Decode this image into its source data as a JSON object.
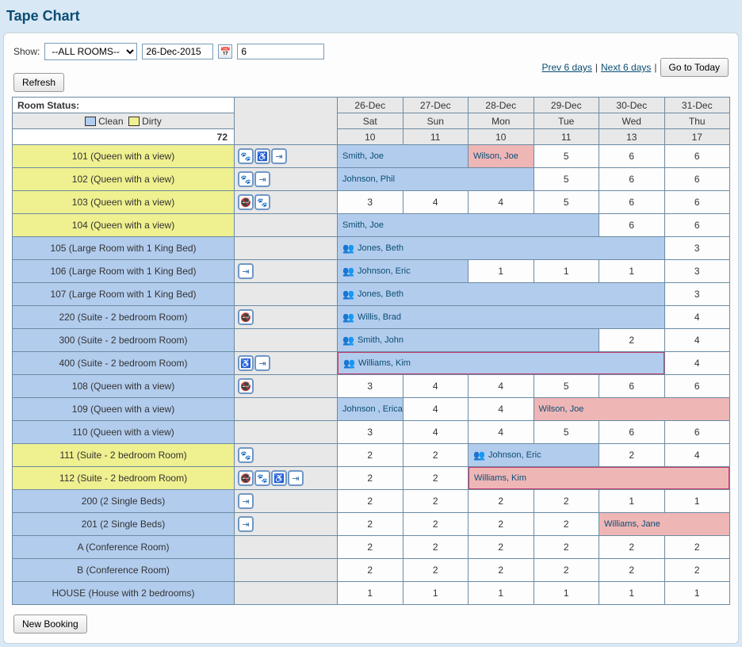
{
  "title": "Tape Chart",
  "toolbar": {
    "show_label": "Show:",
    "room_filter": "--ALL ROOMS--",
    "date_value": "26-Dec-2015",
    "days_value": "6",
    "refresh": "Refresh",
    "prev": "Prev 6 days",
    "next": "Next 6 days",
    "today": "Go to Today",
    "sep": " | "
  },
  "headers": {
    "room_status": "Room Status:",
    "clean": "Clean",
    "dirty": "Dirty",
    "total": "72",
    "days": [
      {
        "date": "26-Dec",
        "dow": "Sat",
        "avail": "10"
      },
      {
        "date": "27-Dec",
        "dow": "Sun",
        "avail": "11"
      },
      {
        "date": "28-Dec",
        "dow": "Mon",
        "avail": "10"
      },
      {
        "date": "29-Dec",
        "dow": "Tue",
        "avail": "11"
      },
      {
        "date": "30-Dec",
        "dow": "Wed",
        "avail": "13"
      },
      {
        "date": "31-Dec",
        "dow": "Thu",
        "avail": "17"
      }
    ]
  },
  "colors": {
    "clean": "#b2cced",
    "dirty": "#eff08f",
    "booking_blue": "#b2cced",
    "booking_pink": "#efb6b6",
    "framed_border": "#c23b6b"
  },
  "rows": [
    {
      "label": "101 (Queen with a view)",
      "status": "dirty",
      "icons": [
        "pet",
        "wheelchair",
        "door"
      ],
      "cells": [
        {
          "type": "booking",
          "span": 2,
          "text": "Smith, Joe",
          "color": "blue"
        },
        {
          "type": "booking",
          "span": 1,
          "text": "Wilson, Joe",
          "color": "pink"
        },
        {
          "type": "num",
          "val": "5"
        },
        {
          "type": "num",
          "val": "6"
        },
        {
          "type": "num",
          "val": "6"
        }
      ]
    },
    {
      "label": "102 (Queen with a view)",
      "status": "dirty",
      "icons": [
        "pet",
        "door"
      ],
      "cells": [
        {
          "type": "booking",
          "span": 3,
          "text": "Johnson, Phil",
          "color": "blue"
        },
        {
          "type": "num",
          "val": "5"
        },
        {
          "type": "num",
          "val": "6"
        },
        {
          "type": "num",
          "val": "6"
        }
      ]
    },
    {
      "label": "103 (Queen with a view)",
      "status": "dirty",
      "icons": [
        "nosmoke",
        "pet"
      ],
      "cells": [
        {
          "type": "num",
          "val": "3"
        },
        {
          "type": "num",
          "val": "4"
        },
        {
          "type": "num",
          "val": "4"
        },
        {
          "type": "num",
          "val": "5"
        },
        {
          "type": "num",
          "val": "6"
        },
        {
          "type": "num",
          "val": "6"
        }
      ]
    },
    {
      "label": "104 (Queen with a view)",
      "status": "dirty",
      "icons": [],
      "cells": [
        {
          "type": "booking",
          "span": 4,
          "text": "Smith, Joe",
          "color": "blue"
        },
        {
          "type": "num",
          "val": "6"
        },
        {
          "type": "num",
          "val": "6"
        }
      ]
    },
    {
      "label": "105 (Large Room with 1 King Bed)",
      "status": "clean",
      "icons": [],
      "cells": [
        {
          "type": "booking",
          "span": 5,
          "text": "Jones, Beth",
          "color": "blue",
          "group": true
        },
        {
          "type": "num",
          "val": "3"
        }
      ]
    },
    {
      "label": "106 (Large Room with 1 King Bed)",
      "status": "clean",
      "icons": [
        "door"
      ],
      "cells": [
        {
          "type": "booking",
          "span": 2,
          "text": "Johnson, Eric",
          "color": "blue",
          "group": true
        },
        {
          "type": "num",
          "val": "1"
        },
        {
          "type": "num",
          "val": "1"
        },
        {
          "type": "num",
          "val": "1"
        },
        {
          "type": "num",
          "val": "3"
        }
      ]
    },
    {
      "label": "107 (Large Room with 1 King Bed)",
      "status": "clean",
      "icons": [],
      "cells": [
        {
          "type": "booking",
          "span": 5,
          "text": "Jones, Beth",
          "color": "blue",
          "group": true
        },
        {
          "type": "num",
          "val": "3"
        }
      ]
    },
    {
      "label": "220 (Suite - 2 bedroom Room)",
      "status": "clean",
      "icons": [
        "nosmoke"
      ],
      "cells": [
        {
          "type": "booking",
          "span": 5,
          "text": "Willis, Brad",
          "color": "blue",
          "group": true
        },
        {
          "type": "num",
          "val": "4"
        }
      ]
    },
    {
      "label": "300 (Suite - 2 bedroom Room)",
      "status": "clean",
      "icons": [],
      "cells": [
        {
          "type": "booking",
          "span": 4,
          "text": "Smith, John",
          "color": "blue",
          "group": true
        },
        {
          "type": "num",
          "val": "2"
        },
        {
          "type": "num",
          "val": "4"
        }
      ]
    },
    {
      "label": "400 (Suite - 2 bedroom Room)",
      "status": "clean",
      "icons": [
        "wheelchair",
        "door"
      ],
      "cells": [
        {
          "type": "booking",
          "span": 5,
          "text": "Williams, Kim",
          "color": "blue",
          "group": true,
          "framed": true
        },
        {
          "type": "num",
          "val": "4"
        }
      ]
    },
    {
      "label": "108 (Queen with a view)",
      "status": "clean",
      "icons": [
        "nosmoke"
      ],
      "cells": [
        {
          "type": "num",
          "val": "3"
        },
        {
          "type": "num",
          "val": "4"
        },
        {
          "type": "num",
          "val": "4"
        },
        {
          "type": "num",
          "val": "5"
        },
        {
          "type": "num",
          "val": "6"
        },
        {
          "type": "num",
          "val": "6"
        }
      ]
    },
    {
      "label": "109 (Queen with a view)",
      "status": "clean",
      "icons": [],
      "cells": [
        {
          "type": "booking",
          "span": 1,
          "text": "Johnson , Erica",
          "color": "blue"
        },
        {
          "type": "num",
          "val": "4"
        },
        {
          "type": "num",
          "val": "4"
        },
        {
          "type": "booking",
          "span": 3,
          "text": "Wilson, Joe",
          "color": "pink"
        }
      ]
    },
    {
      "label": "110 (Queen with a view)",
      "status": "clean",
      "icons": [],
      "cells": [
        {
          "type": "num",
          "val": "3"
        },
        {
          "type": "num",
          "val": "4"
        },
        {
          "type": "num",
          "val": "4"
        },
        {
          "type": "num",
          "val": "5"
        },
        {
          "type": "num",
          "val": "6"
        },
        {
          "type": "num",
          "val": "6"
        }
      ]
    },
    {
      "label": "111 (Suite - 2 bedroom Room)",
      "status": "dirty",
      "icons": [
        "pet"
      ],
      "cells": [
        {
          "type": "num",
          "val": "2"
        },
        {
          "type": "num",
          "val": "2"
        },
        {
          "type": "booking",
          "span": 2,
          "text": "Johnson, Eric",
          "color": "blue",
          "group": true
        },
        {
          "type": "num",
          "val": "2"
        },
        {
          "type": "num",
          "val": "4"
        }
      ]
    },
    {
      "label": "112 (Suite - 2 bedroom Room)",
      "status": "dirty",
      "icons": [
        "nosmoke",
        "pet",
        "wheelchair",
        "door"
      ],
      "cells": [
        {
          "type": "num",
          "val": "2"
        },
        {
          "type": "num",
          "val": "2"
        },
        {
          "type": "booking",
          "span": 4,
          "text": "Williams, Kim",
          "color": "pink",
          "framed": true
        }
      ]
    },
    {
      "label": "200 (2 Single Beds)",
      "status": "clean",
      "icons": [
        "door"
      ],
      "cells": [
        {
          "type": "num",
          "val": "2"
        },
        {
          "type": "num",
          "val": "2"
        },
        {
          "type": "num",
          "val": "2"
        },
        {
          "type": "num",
          "val": "2"
        },
        {
          "type": "num",
          "val": "1"
        },
        {
          "type": "num",
          "val": "1"
        }
      ]
    },
    {
      "label": "201 (2 Single Beds)",
      "status": "clean",
      "icons": [
        "door"
      ],
      "cells": [
        {
          "type": "num",
          "val": "2"
        },
        {
          "type": "num",
          "val": "2"
        },
        {
          "type": "num",
          "val": "2"
        },
        {
          "type": "num",
          "val": "2"
        },
        {
          "type": "booking",
          "span": 2,
          "text": "Williams, Jane",
          "color": "pink"
        }
      ]
    },
    {
      "label": "A (Conference Room)",
      "status": "clean",
      "icons": [],
      "cells": [
        {
          "type": "num",
          "val": "2"
        },
        {
          "type": "num",
          "val": "2"
        },
        {
          "type": "num",
          "val": "2"
        },
        {
          "type": "num",
          "val": "2"
        },
        {
          "type": "num",
          "val": "2"
        },
        {
          "type": "num",
          "val": "2"
        }
      ]
    },
    {
      "label": "B (Conference Room)",
      "status": "clean",
      "icons": [],
      "cells": [
        {
          "type": "num",
          "val": "2"
        },
        {
          "type": "num",
          "val": "2"
        },
        {
          "type": "num",
          "val": "2"
        },
        {
          "type": "num",
          "val": "2"
        },
        {
          "type": "num",
          "val": "2"
        },
        {
          "type": "num",
          "val": "2"
        }
      ]
    },
    {
      "label": "HOUSE (House with 2 bedrooms)",
      "status": "clean",
      "icons": [],
      "cells": [
        {
          "type": "num",
          "val": "1"
        },
        {
          "type": "num",
          "val": "1"
        },
        {
          "type": "num",
          "val": "1"
        },
        {
          "type": "num",
          "val": "1"
        },
        {
          "type": "num",
          "val": "1"
        },
        {
          "type": "num",
          "val": "1"
        }
      ]
    }
  ],
  "footer": {
    "new_booking": "New Booking"
  },
  "icon_glyphs": {
    "pet": "🐾",
    "wheelchair": "♿",
    "door": "⇥",
    "nosmoke": "🚭"
  }
}
